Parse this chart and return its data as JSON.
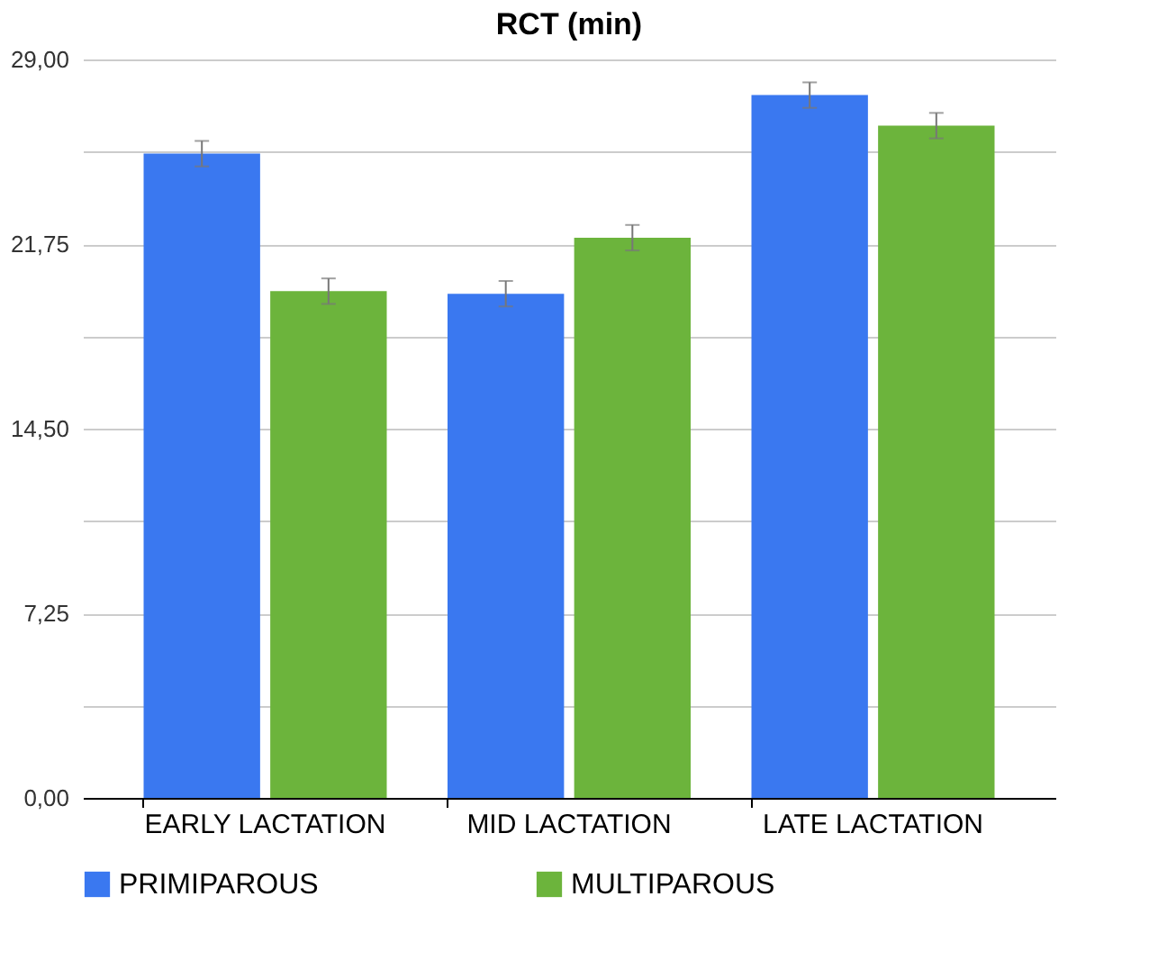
{
  "chart_data": {
    "type": "bar",
    "title": "RCT (min)",
    "categories": [
      "EARLY LACTATION",
      "MID LACTATION",
      "LATE LACTATION"
    ],
    "series": [
      {
        "name": "PRIMIPAROUS",
        "color": "#3a78f0",
        "values": [
          25.3,
          19.8,
          27.6
        ],
        "errors": [
          0.5,
          0.5,
          0.5
        ]
      },
      {
        "name": "MULTIPAROUS",
        "color": "#6cb43c",
        "values": [
          19.9,
          22.0,
          26.4
        ],
        "errors": [
          0.5,
          0.5,
          0.5
        ]
      }
    ],
    "ylim": [
      0,
      29
    ],
    "yticks": [
      {
        "value": 0,
        "label": "0,00"
      },
      {
        "value": 3.625,
        "label": null
      },
      {
        "value": 7.25,
        "label": "7,25"
      },
      {
        "value": 10.875,
        "label": null
      },
      {
        "value": 14.5,
        "label": "14,50"
      },
      {
        "value": 18.125,
        "label": null
      },
      {
        "value": 21.75,
        "label": "21,75"
      },
      {
        "value": 25.375,
        "label": null
      },
      {
        "value": 29,
        "label": "29,00"
      }
    ],
    "grid": "y",
    "legend": "bottom"
  }
}
